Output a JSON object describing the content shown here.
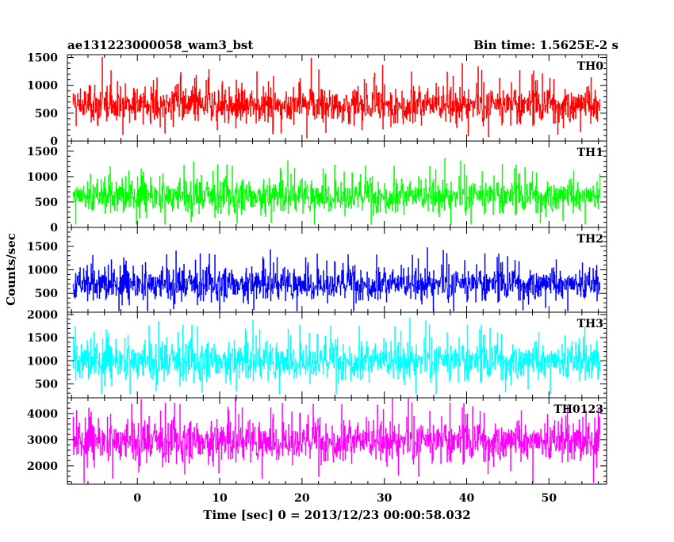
{
  "chart_data": {
    "type": "line",
    "title_left": "ae131223000058_wam3_bst",
    "title_right": "Bin time: 1.5625E-2 s",
    "xlabel": "Time [sec] 0 = 2013/12/23 00:00:58.032",
    "ylabel": "Counts/sec",
    "xlim": [
      -8.5,
      57
    ],
    "data_xrange": [
      -7.8,
      56.2
    ],
    "xticks": [
      0,
      10,
      20,
      30,
      40,
      50
    ],
    "xtick_labels": [
      "0",
      "10",
      "20",
      "30",
      "40",
      "50"
    ],
    "grid": false,
    "panels": [
      {
        "name": "TH0",
        "color": "#ff0000",
        "ylim": [
          0,
          1550
        ],
        "yticks": [
          0,
          500,
          1000,
          1500
        ],
        "ytick_labels": [
          "0",
          "500",
          "1000",
          "1500"
        ],
        "baseline": 650,
        "spread": 230,
        "floor": 50,
        "ceil": 1550
      },
      {
        "name": "TH1",
        "color": "#00ff00",
        "ylim": [
          0,
          1700
        ],
        "yticks": [
          0,
          500,
          1000,
          1500
        ],
        "ytick_labels": [
          "0",
          "500",
          "1000",
          "1500"
        ],
        "baseline": 620,
        "spread": 230,
        "floor": 60,
        "ceil": 1700
      },
      {
        "name": "TH2",
        "color": "#0000ff",
        "ylim": [
          100,
          1900
        ],
        "yticks": [
          500,
          1000,
          1500
        ],
        "ytick_labels": [
          "500",
          "1000",
          "1500"
        ],
        "baseline": 700,
        "spread": 240,
        "floor": 120,
        "ceil": 1900
      },
      {
        "name": "TH3",
        "color": "#00ffff",
        "ylim": [
          200,
          2050
        ],
        "yticks": [
          500,
          1000,
          1500,
          2000
        ],
        "ytick_labels": [
          "500",
          "1000",
          "1500",
          "2000"
        ],
        "baseline": 1000,
        "spread": 290,
        "floor": 280,
        "ceil": 2050
      },
      {
        "name": "TH0123",
        "color": "#ff00ff",
        "ylim": [
          1300,
          4600
        ],
        "yticks": [
          2000,
          3000,
          4000
        ],
        "ytick_labels": [
          "2000",
          "3000",
          "4000"
        ],
        "baseline": 2950,
        "spread": 540,
        "floor": 1350,
        "ceil": 4600
      }
    ]
  }
}
